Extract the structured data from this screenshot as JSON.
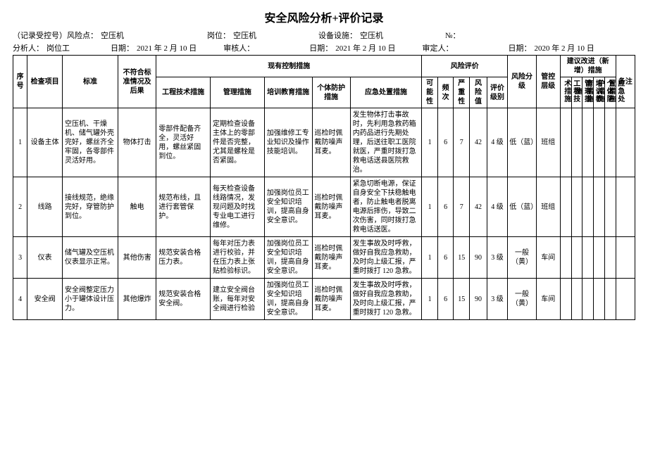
{
  "title": "安全风险分析+评价记录",
  "meta1": {
    "record_label": "（记录受控号）风险点：",
    "record_value": "空压机",
    "post_label": "岗位：",
    "post_value": "空压机",
    "equip_label": "设备设施：",
    "equip_value": "空压机",
    "no_label": "№："
  },
  "meta2": {
    "analyst_label": "分析人：",
    "analyst_value": "岗位工",
    "date1_label": "日期：",
    "date1_value": "2021 年 2 月 10 日",
    "reviewer_label": "审核人：",
    "date2_label": "日期：",
    "date2_value": "2021 年 2 月 10 日",
    "approver_label": "审定人：",
    "date3_label": "日期：",
    "date3_value": "2020 年 2 月 10 日"
  },
  "headers": {
    "seq": "序号",
    "item": "检查项目",
    "standard": "标准",
    "nonconf": "不符合标准情况及后果",
    "existing": "现有控制措施",
    "eng": "工程技术措施",
    "mgmt": "管理措施",
    "train": "培训教育措施",
    "ppe": "个体防护措施",
    "emerg": "应急处置措施",
    "risk_eval": "风险评价",
    "likelihood": "可能性",
    "freq": "频次",
    "severity": "严重性",
    "risk_val": "风险值",
    "eval_level": "评价级别",
    "risk_grade": "风险分级",
    "ctrl_level": "管控层级",
    "suggest": "建议改进（新增）措施",
    "s_eng": "工程技术措施",
    "s_mgmt": "管理措施",
    "s_train": "培训教育措施",
    "s_ppe": "个体防护措施",
    "s_emerg": "应急处置措施",
    "remark": "备注"
  },
  "rows": [
    {
      "seq": "1",
      "item": "设备主体",
      "standard": "空压机、干燥机、储气罐外壳完好，螺丝齐全牢固，各零部件灵活好用。",
      "nonconf": "物体打击",
      "eng": "零部件配备齐全，灵活好用，螺丝紧固到位。",
      "mgmt": "定期检查设备主体上的零部件是否完整，尤其是螺栓是否紧固。",
      "train": "加强维修工专业知识及操作技能培训。",
      "ppe": "巡检时佩戴防噪声耳麦。",
      "emerg": "发生物体打击事故时，先利用急救药箱内药品进行先期处理，后送往职工医院就医，严重时拨打急救电话送县医院救治。",
      "l": "1",
      "f": "6",
      "s": "7",
      "v": "42",
      "el": "4 级",
      "rg": "低（蓝）",
      "cl": "班组"
    },
    {
      "seq": "2",
      "item": "线路",
      "standard": "接线规范，绝缘完好，穿管防护到位。",
      "nonconf": "触电",
      "eng": "规范布线，且进行套管保护。",
      "mgmt": "每天检查设备线路情况，发现问题及时找专业电工进行维修。",
      "train": "加强岗位员工安全知识培训，提高自身安全意识。",
      "ppe": "巡检时佩戴防噪声耳麦。",
      "emerg": "紧急切断电源，保证自身安全下扶稳触电者，防止触电者脱离电源后摔伤，导致二次伤害，同时拨打急救电话送医。",
      "l": "1",
      "f": "6",
      "s": "7",
      "v": "42",
      "el": "4 级",
      "rg": "低（蓝）",
      "cl": "班组"
    },
    {
      "seq": "3",
      "item": "仪表",
      "standard": "储气罐及空压机仪表显示正常。",
      "nonconf": "其他伤害",
      "eng": "规范安装合格压力表。",
      "mgmt": "每年对压力表进行校验，并在压力表上张贴检验标识。",
      "train": "加强岗位员工安全知识培训，提高自身安全意识。",
      "ppe": "巡检时佩戴防噪声耳麦。",
      "emerg": "发生事故及时呼救，做好自我应急救助，及时向上级汇报，严重时拨打 120 急救。",
      "l": "1",
      "f": "6",
      "s": "15",
      "v": "90",
      "el": "3 级",
      "rg": "一般（黄）",
      "cl": "车间"
    },
    {
      "seq": "4",
      "item": "安全阀",
      "standard": "安全阀整定压力小于罐体设计压力。",
      "nonconf": "其他爆炸",
      "eng": "规范安装合格安全阀。",
      "mgmt": "建立安全阀台账，每年对安全阀进行检验",
      "train": "加强岗位员工安全知识培训，提高自身安全意识。",
      "ppe": "巡检时佩戴防噪声耳麦。",
      "emerg": "发生事故及时呼救，做好自我应急救助，及时向上级汇报，严重时拨打 120 急救。",
      "l": "1",
      "f": "6",
      "s": "15",
      "v": "90",
      "el": "3 级",
      "rg": "一般（黄）",
      "cl": "车间"
    }
  ]
}
